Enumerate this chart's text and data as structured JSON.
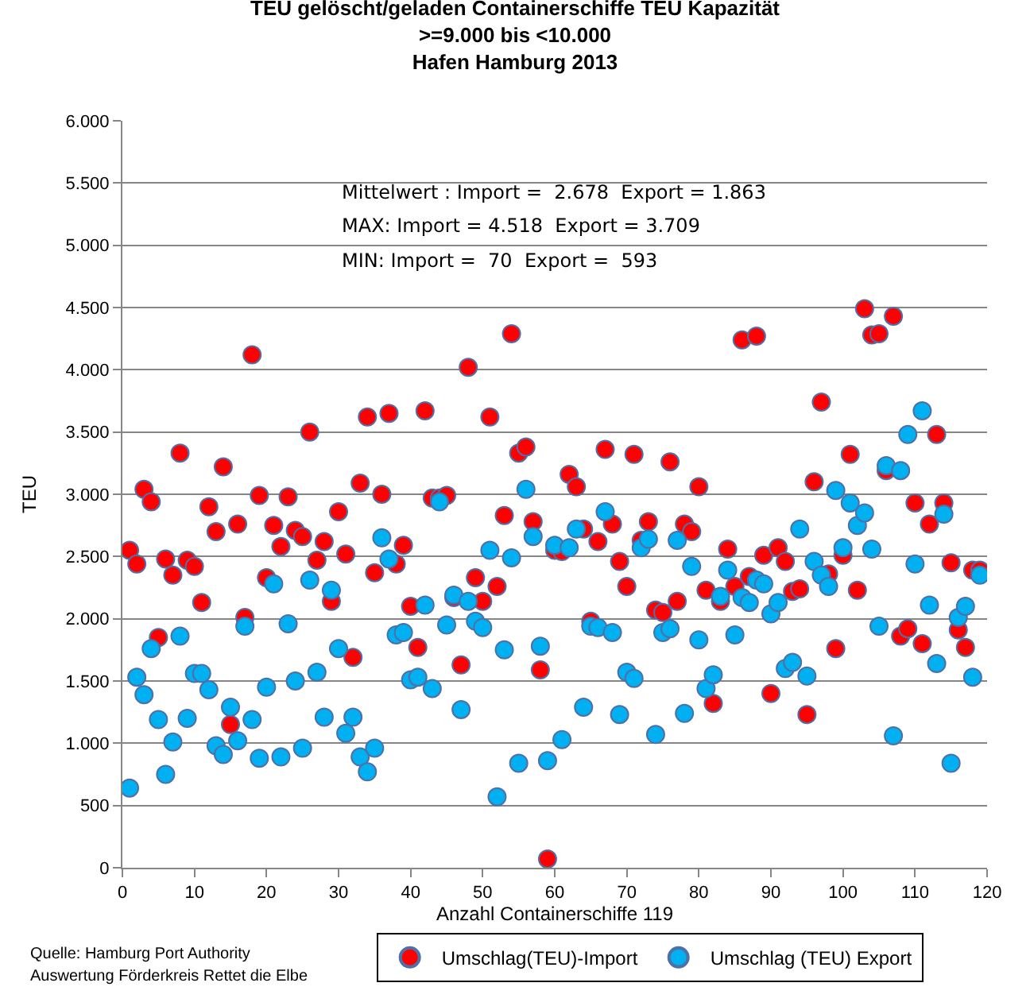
{
  "chart_data": {
    "type": "scatter",
    "title": "TEU gelöscht/geladen Containerschiffe TEU Kapazität\n>=9.000 bis <10.000\nHafen Hamburg 2013",
    "xlabel": "Anzahl Containerschiffe 119",
    "ylabel": "TEU",
    "x": [
      1,
      2,
      3,
      4,
      5,
      6,
      7,
      8,
      9,
      10,
      11,
      12,
      13,
      14,
      15,
      16,
      17,
      18,
      19,
      20,
      21,
      22,
      23,
      24,
      25,
      26,
      27,
      28,
      29,
      30,
      31,
      32,
      33,
      34,
      35,
      36,
      37,
      38,
      39,
      40,
      41,
      42,
      43,
      44,
      45,
      46,
      47,
      48,
      49,
      50,
      51,
      52,
      53,
      54,
      55,
      56,
      57,
      58,
      59,
      60,
      61,
      62,
      63,
      64,
      65,
      66,
      67,
      68,
      69,
      70,
      71,
      72,
      73,
      74,
      75,
      76,
      77,
      78,
      79,
      80,
      81,
      82,
      83,
      84,
      85,
      86,
      87,
      88,
      89,
      90,
      91,
      92,
      93,
      94,
      95,
      96,
      97,
      98,
      99,
      100,
      101,
      102,
      103,
      104,
      105,
      106,
      107,
      108,
      109,
      110,
      111,
      112,
      113,
      114,
      115,
      116,
      117,
      118,
      119
    ],
    "series": [
      {
        "name": "Umschlag(TEU)-Import",
        "color": "#ff0000",
        "values": [
          2550,
          2440,
          3040,
          2940,
          1850,
          2480,
          2350,
          3330,
          2470,
          2420,
          2130,
          2900,
          2700,
          3220,
          1150,
          2760,
          2010,
          4120,
          2990,
          2330,
          2750,
          2580,
          2980,
          2710,
          2660,
          3500,
          2470,
          2620,
          2140,
          2860,
          2520,
          1690,
          3090,
          3620,
          2370,
          3000,
          3650,
          2440,
          2590,
          2100,
          1770,
          3670,
          2970,
          2970,
          2990,
          2170,
          1630,
          4020,
          2330,
          2140,
          3620,
          2260,
          2830,
          4290,
          3330,
          3380,
          2780,
          1590,
          70,
          2550,
          2540,
          3160,
          3060,
          2720,
          1980,
          2620,
          3360,
          2760,
          2460,
          2260,
          3320,
          2630,
          2780,
          2070,
          2050,
          3260,
          2140,
          2760,
          2700,
          3060,
          2230,
          1320,
          2140,
          2560,
          2260,
          4240,
          2340,
          4270,
          2510,
          1400,
          2570,
          2460,
          2220,
          2240,
          1230,
          3100,
          3740,
          2360,
          1760,
          2510,
          3320,
          2230,
          4490,
          4280,
          4290,
          3190,
          4430,
          1860,
          1920,
          2930,
          1800,
          2760,
          3480,
          2930,
          2450,
          1910,
          1770,
          2390,
          2390
        ]
      },
      {
        "name": "Umschlag (TEU) Export",
        "color": "#00b0f0",
        "values": [
          640,
          1530,
          1390,
          1760,
          1190,
          750,
          1010,
          1860,
          1200,
          1560,
          1560,
          1430,
          980,
          910,
          1290,
          1020,
          1940,
          1190,
          880,
          1450,
          2280,
          890,
          1960,
          1500,
          960,
          2310,
          1570,
          1210,
          2230,
          1760,
          1080,
          1210,
          890,
          770,
          960,
          2650,
          2480,
          1870,
          1890,
          1510,
          1530,
          2110,
          1440,
          2940,
          1950,
          2190,
          1270,
          2140,
          1980,
          1930,
          2550,
          570,
          1750,
          2490,
          840,
          3040,
          2660,
          1780,
          860,
          2590,
          1030,
          2570,
          2720,
          1290,
          1940,
          1930,
          2860,
          1890,
          1230,
          1570,
          1520,
          2570,
          2640,
          1070,
          1890,
          1920,
          2630,
          1240,
          2420,
          1830,
          1440,
          1550,
          2180,
          2390,
          1870,
          2170,
          2130,
          2310,
          2280,
          2040,
          2130,
          1600,
          1650,
          2720,
          1540,
          2460,
          2350,
          2260,
          3030,
          2570,
          2930,
          2750,
          2850,
          2560,
          1940,
          3230,
          1060,
          3190,
          3480,
          2440,
          3670,
          2110,
          1640,
          2840,
          840,
          2010,
          2100,
          1530,
          2350
        ]
      }
    ],
    "xlim": [
      0,
      120
    ],
    "xticks": [
      0,
      10,
      20,
      30,
      40,
      50,
      60,
      70,
      80,
      90,
      100,
      110,
      120
    ],
    "ylim": [
      0,
      6000
    ],
    "yticks": [
      {
        "value": 0,
        "label": "0"
      },
      {
        "value": 500,
        "label": "500"
      },
      {
        "value": 1000,
        "label": "1.000"
      },
      {
        "value": 1500,
        "label": "1.500"
      },
      {
        "value": 2000,
        "label": "2.000"
      },
      {
        "value": 2500,
        "label": "2.500"
      },
      {
        "value": 3000,
        "label": "3.000"
      },
      {
        "value": 3500,
        "label": "3.500"
      },
      {
        "value": 4000,
        "label": "4.000"
      },
      {
        "value": 4500,
        "label": "4.500"
      },
      {
        "value": 5000,
        "label": "5.000"
      },
      {
        "value": 5500,
        "label": "5.500"
      },
      {
        "value": 6000,
        "label": "6.000"
      }
    ],
    "grid": "y",
    "legend": "bottom",
    "marker": "circle",
    "annotations": [
      "Mittelwert : Import =  2.678  Export = 1.863",
      "MAX: Import = 4.518  Export = 3.709",
      "MIN: Import =  70  Export =  593",
      "Quelle: Hamburg Port Authority",
      "Auswertung Förderkreis Rettet die Elbe"
    ]
  }
}
